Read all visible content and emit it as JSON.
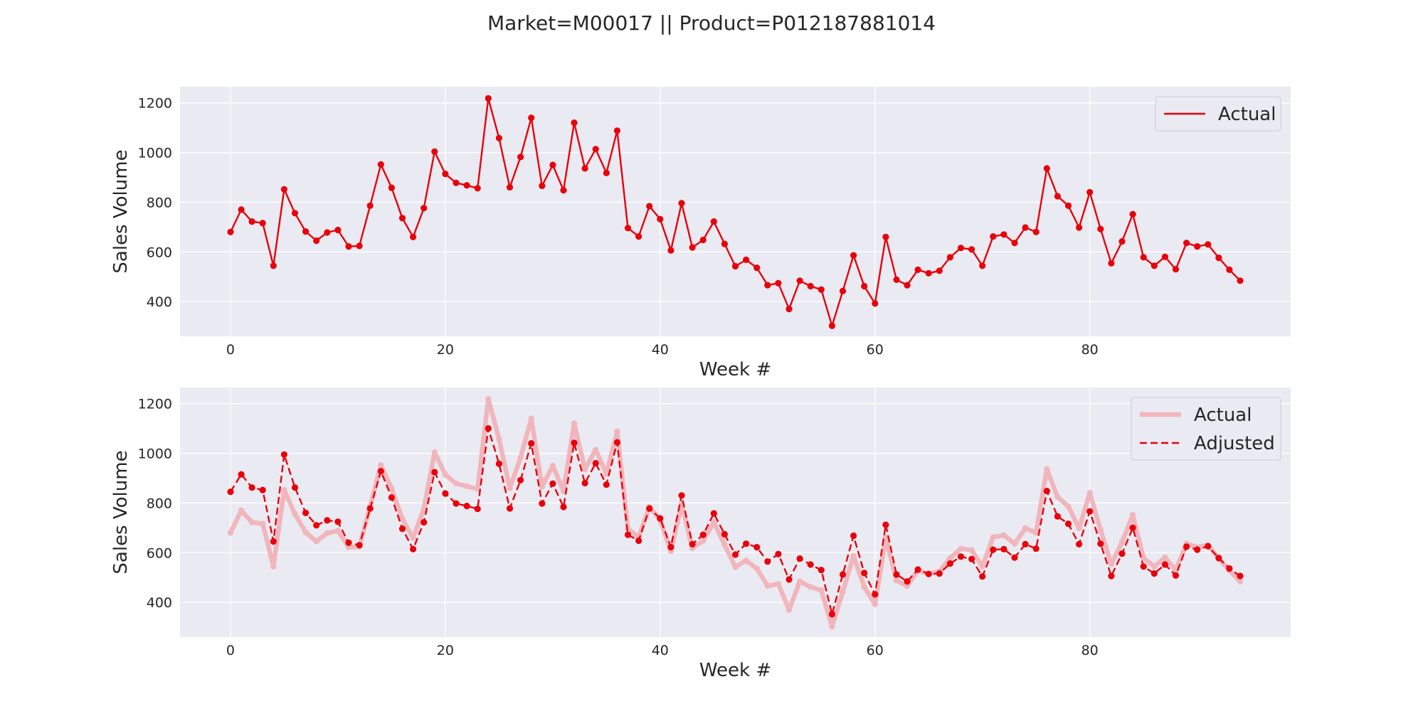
{
  "figure_title": "Market=M00017 || Product=P012187881014",
  "colors": {
    "panel_bg": "#eaeaf2",
    "grid": "#ffffff",
    "actual": "#e8000b",
    "actual_faded": "#f0b6bc",
    "adjusted": "#e8000b"
  },
  "chart_data": [
    {
      "type": "line",
      "xlabel": "Week #",
      "ylabel": "Sales Volume",
      "xlim": [
        -4.7,
        98.7
      ],
      "ylim": [
        260,
        1265
      ],
      "xticks": [
        0,
        20,
        40,
        60,
        80
      ],
      "yticks": [
        400,
        600,
        800,
        1000,
        1200
      ],
      "grid": true,
      "legend": "top-right",
      "series": [
        {
          "name": "Actual",
          "style": "solid",
          "values": [
            680,
            770,
            722,
            716,
            544,
            852,
            756,
            682,
            645,
            678,
            688,
            622,
            624,
            786,
            952,
            858,
            736,
            660,
            776,
            1004,
            914,
            878,
            868,
            856,
            1218,
            1058,
            860,
            982,
            1140,
            866,
            950,
            848,
            1120,
            936,
            1014,
            918,
            1088,
            696,
            662,
            784,
            732,
            606,
            796,
            618,
            648,
            722,
            632,
            542,
            568,
            536,
            466,
            474,
            370,
            484,
            462,
            448,
            302,
            442,
            586,
            462,
            392,
            660,
            488,
            466,
            528,
            514,
            524,
            578,
            616,
            610,
            544,
            662,
            670,
            636,
            698,
            680,
            936,
            824,
            786,
            698,
            840,
            692,
            554,
            642,
            752,
            578,
            544,
            580,
            530,
            636,
            622,
            630,
            576,
            528,
            484
          ]
        }
      ]
    },
    {
      "type": "line",
      "xlabel": "Week #",
      "ylabel": "Sales Volume",
      "xlim": [
        -4.7,
        98.7
      ],
      "ylim": [
        260,
        1265
      ],
      "xticks": [
        0,
        20,
        40,
        60,
        80
      ],
      "yticks": [
        400,
        600,
        800,
        1000,
        1200
      ],
      "grid": true,
      "legend": "top-right",
      "series": [
        {
          "name": "Actual",
          "style": "thick-faded",
          "values": [
            680,
            770,
            722,
            716,
            544,
            852,
            756,
            682,
            645,
            678,
            688,
            622,
            624,
            786,
            952,
            858,
            736,
            660,
            776,
            1004,
            914,
            878,
            868,
            856,
            1218,
            1058,
            860,
            982,
            1140,
            866,
            950,
            848,
            1120,
            936,
            1014,
            918,
            1088,
            696,
            662,
            784,
            732,
            606,
            796,
            618,
            648,
            722,
            632,
            542,
            568,
            536,
            466,
            474,
            370,
            484,
            462,
            448,
            302,
            442,
            586,
            462,
            392,
            660,
            488,
            466,
            528,
            514,
            524,
            578,
            616,
            610,
            544,
            662,
            670,
            636,
            698,
            680,
            936,
            824,
            786,
            698,
            840,
            692,
            554,
            642,
            752,
            578,
            544,
            580,
            530,
            636,
            622,
            630,
            576,
            528,
            484
          ]
        },
        {
          "name": "Adjusted",
          "style": "dashed",
          "values": [
            845,
            915,
            862,
            852,
            645,
            995,
            862,
            760,
            710,
            730,
            724,
            640,
            630,
            778,
            928,
            822,
            696,
            614,
            722,
            924,
            838,
            798,
            788,
            776,
            1100,
            958,
            778,
            892,
            1040,
            798,
            878,
            784,
            1042,
            880,
            960,
            874,
            1044,
            672,
            648,
            778,
            738,
            622,
            830,
            634,
            672,
            758,
            674,
            592,
            636,
            622,
            564,
            594,
            492,
            576,
            552,
            530,
            352,
            512,
            668,
            518,
            432,
            712,
            512,
            484,
            532,
            514,
            516,
            556,
            584,
            574,
            504,
            612,
            614,
            580,
            634,
            616,
            848,
            746,
            716,
            634,
            766,
            636,
            506,
            596,
            700,
            544,
            516,
            552,
            508,
            624,
            612,
            626,
            578,
            536,
            506
          ]
        }
      ]
    }
  ]
}
